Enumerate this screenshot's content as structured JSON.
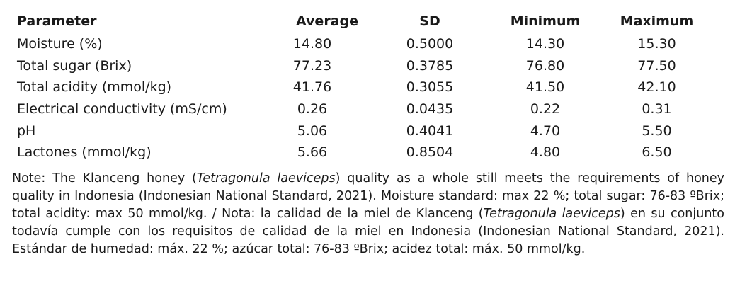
{
  "table": {
    "headers": [
      "Parameter",
      "Average",
      "SD",
      "Minimum",
      "Maximum"
    ],
    "rows": [
      [
        "Moisture (%)",
        "14.80",
        "0.5000",
        "14.30",
        "15.30"
      ],
      [
        "Total sugar (Brix)",
        "77.23",
        "0.3785",
        "76.80",
        "77.50"
      ],
      [
        "Total acidity (mmol/kg)",
        "41.76",
        "0.3055",
        "41.50",
        "42.10"
      ],
      [
        "Electrical conductivity (mS/cm)",
        "0.26",
        "0.0435",
        "0.22",
        "0.31"
      ],
      [
        "pH",
        "5.06",
        "0.4041",
        "4.70",
        "5.50"
      ],
      [
        "Lactones (mmol/kg)",
        "5.66",
        "0.8504",
        "4.80",
        "6.50"
      ]
    ]
  },
  "note": {
    "part1": "Note: The Klanceng honey (",
    "species1": "Tetragonula laeviceps",
    "part2": ") quality as a whole still meets the requirements of honey quality in Indonesia (Indonesian National Standard, 2021). Moisture standard: max 22 %; total sugar: 76-83 ºBrix; total acidity: max 50 mmol/kg. / Nota: la calidad de la miel de Klanceng (",
    "species2": "Tetragonula laeviceps",
    "part3": ") en su conjunto todavía cumple con los requisitos de calidad de la miel en Indonesia (Indonesian National Standard, 2021). Estándar de humedad: máx. 22 %; azúcar total: 76-83 ºBrix; acidez total: máx. 50 mmol/kg."
  }
}
